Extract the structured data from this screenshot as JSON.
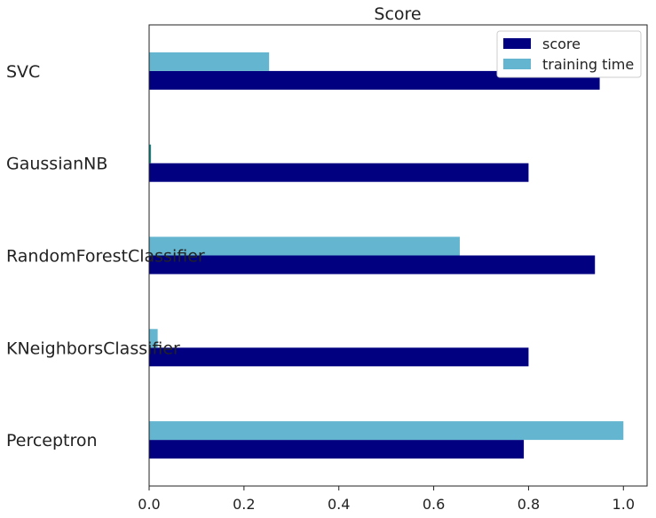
{
  "chart_data": {
    "type": "bar",
    "orientation": "horizontal",
    "title": "Score",
    "categories": [
      "SVC",
      "GaussianNB",
      "RandomForestClassifier",
      "KNeighborsClassifier",
      "Perceptron"
    ],
    "series": [
      {
        "name": "score",
        "color": "#000080",
        "values": [
          0.95,
          0.8,
          0.94,
          0.8,
          0.79
        ]
      },
      {
        "name": "training time",
        "color": "#64b5cf",
        "values": [
          0.253,
          0.004,
          0.655,
          0.018,
          1.0
        ]
      }
    ],
    "xticks": [
      "0.0",
      "0.2",
      "0.4",
      "0.6",
      "0.8",
      "1.0"
    ],
    "xlim": [
      0.0,
      1.05
    ],
    "xlabel": "",
    "ylabel": "",
    "grid": false,
    "legend_position": "top-right"
  }
}
